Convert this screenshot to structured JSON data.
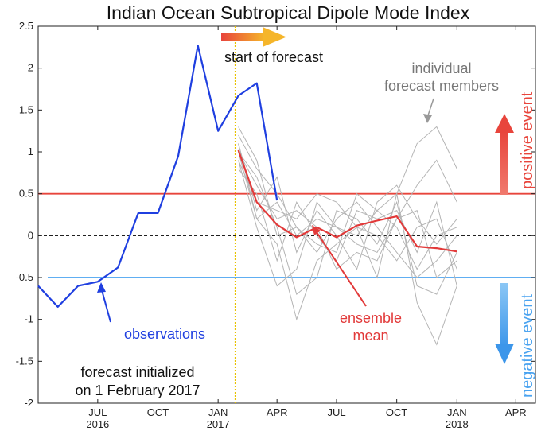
{
  "chart_data": {
    "type": "line",
    "title": "Indian Ocean Subtropical Dipole Mode Index",
    "xlabel": "",
    "ylabel": "",
    "ylim": [
      -2,
      2.5
    ],
    "y_ticks": [
      2.5,
      2,
      1.5,
      1,
      0.5,
      0,
      -0.5,
      -1,
      -1.5,
      -2
    ],
    "y_tick_labels": [
      "2.5",
      "2",
      "1.5",
      "1",
      "0.5",
      "0",
      "-0.5",
      "-1",
      "-1.5",
      "-2"
    ],
    "x_ticks": [
      {
        "date": "2016-07-01",
        "line1": "JUL",
        "line2": "2016"
      },
      {
        "date": "2016-10-01",
        "line1": "OCT",
        "line2": ""
      },
      {
        "date": "2017-01-01",
        "line1": "JAN",
        "line2": "2017"
      },
      {
        "date": "2017-04-01",
        "line1": "APR",
        "line2": ""
      },
      {
        "date": "2017-07-01",
        "line1": "JUL",
        "line2": ""
      },
      {
        "date": "2017-10-01",
        "line1": "OCT",
        "line2": ""
      },
      {
        "date": "2018-01-01",
        "line1": "JAN",
        "line2": "2018"
      },
      {
        "date": "2018-04-01",
        "line1": "APR",
        "line2": ""
      }
    ],
    "thresholds": {
      "positive": 0.5,
      "zero": 0,
      "negative": -0.5
    },
    "forecast_start": "2017-02-01",
    "colors": {
      "observations": "#1f3fe0",
      "ensemble_mean": "#e23a3a",
      "members": "#b4b4b4",
      "positive": "#e8453c",
      "negative": "#4aa3f0",
      "forecast_start_line": "#e8c200",
      "annotation_gray": "#777777"
    },
    "series": [
      {
        "name": "observations",
        "x": [
          "2016-04-01",
          "2016-05-01",
          "2016-06-01",
          "2016-07-01",
          "2016-08-01",
          "2016-09-01",
          "2016-10-01",
          "2016-11-01",
          "2016-12-01",
          "2017-01-01",
          "2017-02-01",
          "2017-03-01",
          "2017-04-01",
          "2017-05-01"
        ],
        "values": [
          -0.6,
          -0.85,
          -0.6,
          -0.55,
          -0.38,
          0.27,
          0.27,
          0.95,
          2.27,
          1.25,
          1.67,
          1.82,
          0.42,
          null
        ]
      },
      {
        "name": "ensemble mean",
        "x": [
          "2017-02-01",
          "2017-03-01",
          "2017-04-01",
          "2017-05-01",
          "2017-06-01",
          "2017-07-01",
          "2017-08-01",
          "2017-09-01",
          "2017-10-01",
          "2017-11-01",
          "2017-12-01",
          "2018-01-01"
        ],
        "values": [
          1.02,
          0.4,
          0.13,
          -0.02,
          0.1,
          -0.02,
          0.12,
          0.18,
          0.23,
          -0.13,
          -0.15,
          -0.19
        ]
      }
    ],
    "members_x": [
      "2017-02-01",
      "2017-03-01",
      "2017-04-01",
      "2017-05-01",
      "2017-06-01",
      "2017-07-01",
      "2017-08-01",
      "2017-09-01",
      "2017-10-01",
      "2017-11-01",
      "2017-12-01",
      "2018-01-01"
    ],
    "members": [
      [
        1.1,
        0.2,
        -0.1,
        -1.0,
        -0.3,
        -0.1,
        0.1,
        -0.5,
        0.5,
        1.1,
        1.3,
        0.8
      ],
      [
        1.0,
        0.6,
        0.2,
        0.3,
        0.1,
        -0.4,
        -0.2,
        -0.3,
        0.2,
        0.6,
        0.9,
        0.4
      ],
      [
        0.9,
        0.1,
        -0.6,
        -0.4,
        0.4,
        0.1,
        0.0,
        0.3,
        0.5,
        -0.8,
        -1.3,
        -0.6
      ],
      [
        1.2,
        0.8,
        0.5,
        0.1,
        -0.2,
        0.2,
        0.4,
        0.1,
        -0.2,
        -0.5,
        -0.3,
        0.0
      ],
      [
        0.8,
        0.5,
        -0.3,
        0.4,
        0.0,
        -0.3,
        0.3,
        0.2,
        0.3,
        -0.2,
        0.4,
        -0.6
      ],
      [
        1.1,
        0.3,
        0.7,
        -0.2,
        0.3,
        0.0,
        -0.4,
        0.4,
        0.6,
        0.2,
        -0.1,
        0.2
      ],
      [
        1.0,
        0.7,
        0.1,
        -0.7,
        -0.5,
        0.3,
        0.2,
        -0.1,
        0.4,
        -0.6,
        -0.7,
        -0.2
      ],
      [
        0.9,
        0.4,
        0.3,
        0.2,
        0.5,
        0.4,
        0.1,
        0.0,
        -0.3,
        0.1,
        0.2,
        -0.4
      ],
      [
        1.3,
        0.9,
        0.0,
        0.1,
        -0.1,
        -0.2,
        0.5,
        0.3,
        0.1,
        -0.4,
        0.0,
        0.1
      ],
      [
        1.0,
        0.2,
        0.4,
        0.0,
        0.2,
        0.1,
        -0.1,
        -0.2,
        0.2,
        0.3,
        -0.5,
        -0.3
      ]
    ],
    "annotations": {
      "start_of_forecast": "start of forecast",
      "members_line1": "individual",
      "members_line2": "forecast members",
      "ensemble_line1": "ensemble",
      "ensemble_line2": "mean",
      "observations": "observations",
      "initialized_line1": "forecast initialized",
      "initialized_line2": "on 1 February 2017",
      "positive_event": "positive event",
      "negative_event": "negative event"
    }
  }
}
